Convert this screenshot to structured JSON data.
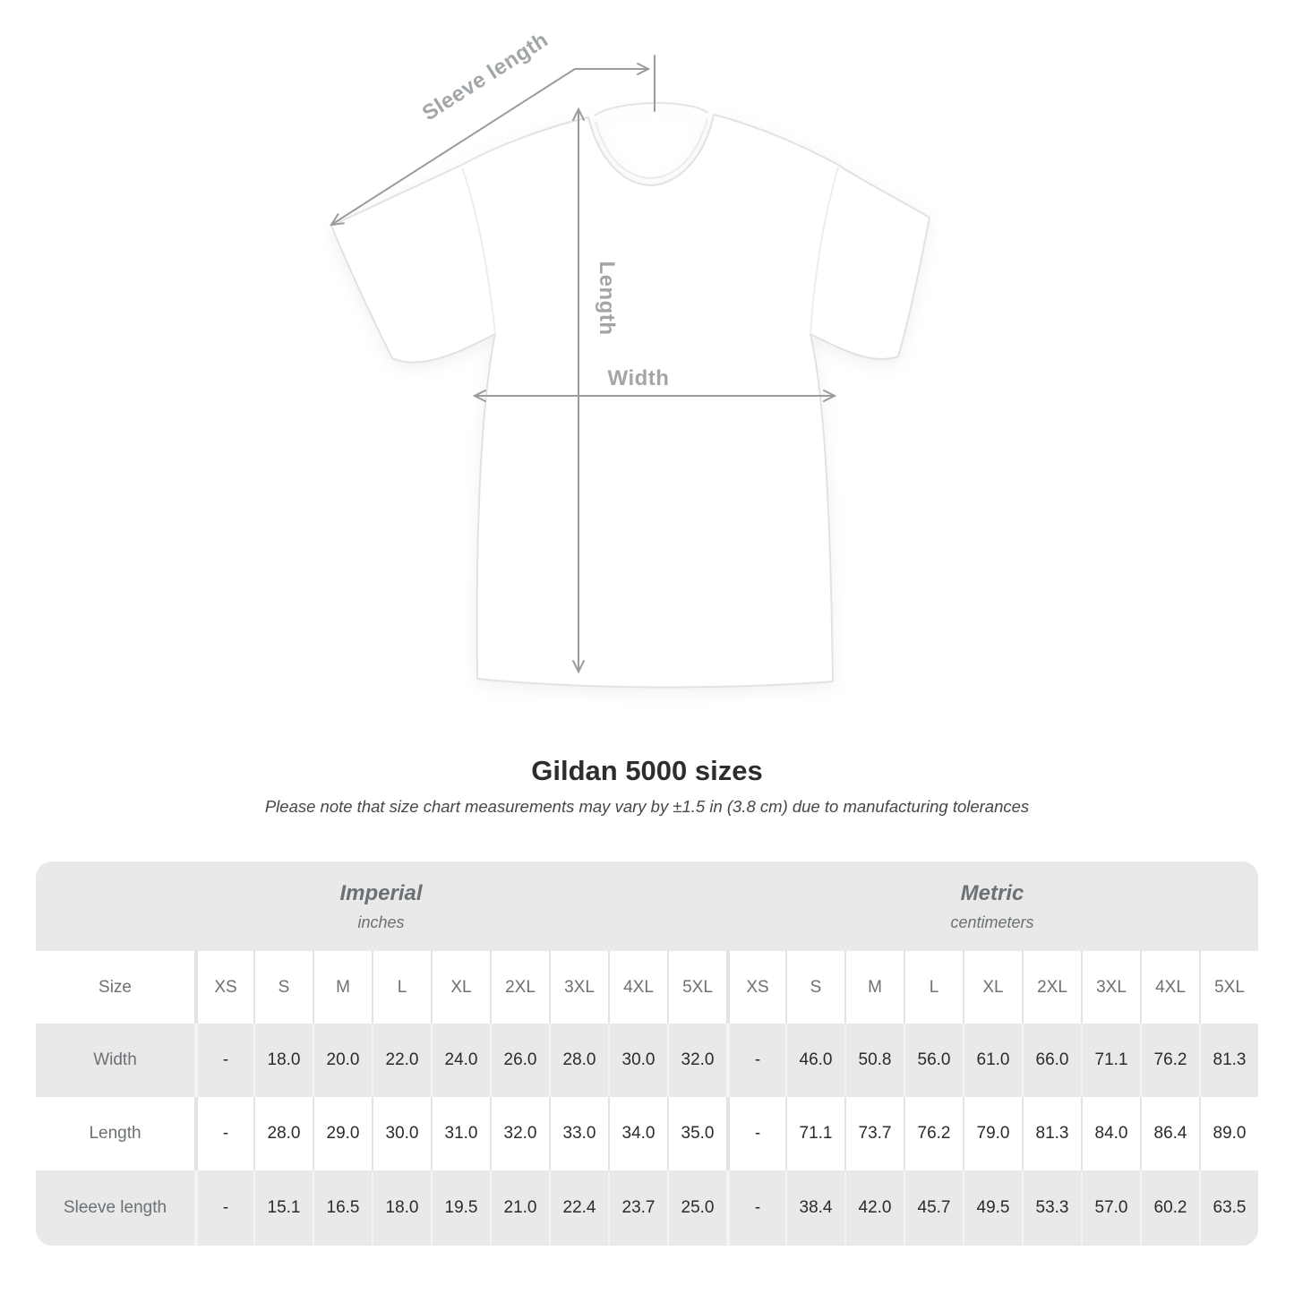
{
  "diagram": {
    "arrow_labels": {
      "sleeve": "Sleeve length",
      "length": "Length",
      "width": "Width"
    },
    "arrow_color": "#9b9b9b",
    "label_color": "#a2a6a9"
  },
  "heading": {
    "title": "Gildan 5000 sizes",
    "note": "Please note that size chart measurements may vary by ±1.5 in (3.8 cm) due to manufacturing tolerances"
  },
  "chart_data": {
    "type": "table",
    "title": "Gildan 5000 sizes",
    "corner_header": "Size",
    "unit_groups": [
      {
        "label": "Imperial",
        "unit": "inches"
      },
      {
        "label": "Metric",
        "unit": "centimeters"
      }
    ],
    "sizes": [
      "XS",
      "S",
      "M",
      "L",
      "XL",
      "2XL",
      "3XL",
      "4XL",
      "5XL"
    ],
    "rows": [
      {
        "label": "Width",
        "imperial": [
          "-",
          "18.0",
          "20.0",
          "22.0",
          "24.0",
          "26.0",
          "28.0",
          "30.0",
          "32.0"
        ],
        "metric": [
          "-",
          "46.0",
          "50.8",
          "56.0",
          "61.0",
          "66.0",
          "71.1",
          "76.2",
          "81.3"
        ]
      },
      {
        "label": "Length",
        "imperial": [
          "-",
          "28.0",
          "29.0",
          "30.0",
          "31.0",
          "32.0",
          "33.0",
          "34.0",
          "35.0"
        ],
        "metric": [
          "-",
          "71.1",
          "73.7",
          "76.2",
          "79.0",
          "81.3",
          "84.0",
          "86.4",
          "89.0"
        ]
      },
      {
        "label": "Sleeve length",
        "imperial": [
          "-",
          "15.1",
          "16.5",
          "18.0",
          "19.5",
          "21.0",
          "22.4",
          "23.7",
          "25.0"
        ],
        "metric": [
          "-",
          "38.4",
          "42.0",
          "45.7",
          "49.5",
          "53.3",
          "57.0",
          "60.2",
          "63.5"
        ]
      }
    ]
  },
  "colors": {
    "table_band": "#e9e9e9",
    "header_text": "#6b7175",
    "value_text": "#2b2b2b"
  }
}
